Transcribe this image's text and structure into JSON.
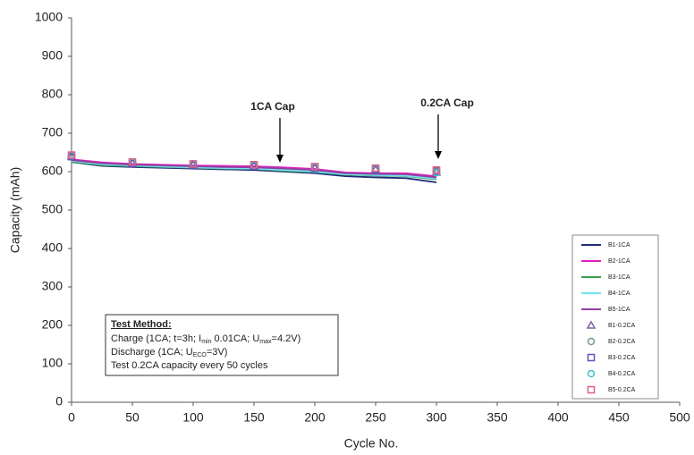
{
  "chart_data": {
    "type": "line",
    "x_label": "Cycle No.",
    "y_label": "Capacity (mAh)",
    "xlim": [
      0,
      500
    ],
    "xticks": [
      0,
      50,
      100,
      150,
      200,
      250,
      300,
      350,
      400,
      450,
      500
    ],
    "ylim": [
      0,
      1000
    ],
    "yticks": [
      0,
      100,
      200,
      300,
      400,
      500,
      600,
      700,
      800,
      900,
      1000
    ],
    "grid": false,
    "legend": "lower right",
    "x": [
      0,
      25,
      50,
      75,
      100,
      125,
      150,
      175,
      200,
      225,
      250,
      275,
      300
    ],
    "series": [
      {
        "name": "B1-1CA",
        "color": "#1f2a7a",
        "type": "line",
        "values": [
          625,
          615,
          612,
          610,
          608,
          606,
          604,
          600,
          596,
          588,
          585,
          583,
          572
        ]
      },
      {
        "name": "B2-1CA",
        "color": "#e020c0",
        "type": "line",
        "values": [
          632,
          624,
          620,
          618,
          616,
          615,
          614,
          611,
          607,
          598,
          596,
          596,
          588
        ]
      },
      {
        "name": "B3-1CA",
        "color": "#3aa050",
        "type": "line",
        "values": [
          626,
          617,
          614,
          612,
          610,
          608,
          607,
          602,
          599,
          592,
          590,
          588,
          580
        ]
      },
      {
        "name": "B4-1CA",
        "color": "#70e0f0",
        "type": "line",
        "values": [
          628,
          619,
          616,
          613,
          611,
          609,
          608,
          604,
          600,
          593,
          591,
          589,
          582
        ]
      },
      {
        "name": "B5-1CA",
        "color": "#9040a0",
        "type": "line",
        "values": [
          630,
          622,
          618,
          616,
          614,
          612,
          611,
          608,
          604,
          596,
          594,
          593,
          585
        ]
      },
      {
        "name": "B1-0.2CA",
        "color": "#8060a0",
        "type": "scatter",
        "marker": "triangle",
        "values": [
          640,
          null,
          622,
          null,
          618,
          null,
          615,
          null,
          610,
          null,
          606,
          null,
          598
        ]
      },
      {
        "name": "B2-0.2CA",
        "color": "#70a080",
        "type": "scatter",
        "marker": "circle",
        "values": [
          641,
          null,
          623,
          null,
          619,
          null,
          616,
          null,
          611,
          null,
          607,
          null,
          600
        ]
      },
      {
        "name": "B3-0.2CA",
        "color": "#6050c0",
        "type": "scatter",
        "marker": "square",
        "values": [
          639,
          null,
          621,
          null,
          617,
          null,
          614,
          null,
          609,
          null,
          605,
          null,
          602
        ]
      },
      {
        "name": "B4-0.2CA",
        "color": "#40c0d0",
        "type": "scatter",
        "marker": "circle",
        "values": [
          642,
          null,
          624,
          null,
          620,
          null,
          617,
          null,
          612,
          null,
          608,
          null,
          597
        ]
      },
      {
        "name": "B5-0.2CA",
        "color": "#e06080",
        "type": "scatter",
        "marker": "square",
        "values": [
          643,
          null,
          625,
          null,
          620,
          null,
          618,
          null,
          613,
          null,
          609,
          null,
          604
        ]
      }
    ],
    "annotations": [
      "1CA Cap",
      "0.2CA Cap"
    ],
    "text_box": {
      "title": "Test Method:",
      "lines": [
        [
          "Charge (1CA; t=3h; I",
          {
            "sub": "min"
          },
          " 0.01CA; U",
          {
            "sub": "max"
          },
          "=4.2V)"
        ],
        [
          "Discharge (1CA; U",
          {
            "sub": "ECO"
          },
          "=3V)"
        ],
        [
          "Test 0.2CA capacity every 50 cycles"
        ]
      ]
    }
  }
}
